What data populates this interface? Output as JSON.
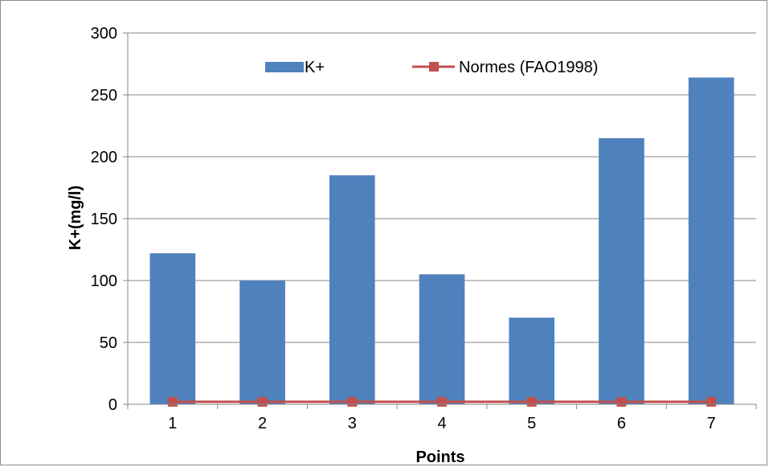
{
  "chart_data": {
    "type": "bar",
    "title": "",
    "xlabel": "Points",
    "ylabel": "K+(mg/l)",
    "categories": [
      "1",
      "2",
      "3",
      "4",
      "5",
      "6",
      "7"
    ],
    "ylim": [
      0,
      300
    ],
    "yticks": [
      0,
      50,
      100,
      150,
      200,
      250,
      300
    ],
    "grid": true,
    "legend_position": "top",
    "series": [
      {
        "name": "K+",
        "type": "bar",
        "color": "#4F81BD",
        "values": [
          122,
          100,
          185,
          105,
          70,
          215,
          264
        ]
      },
      {
        "name": "Normes (FAO1998)",
        "type": "line",
        "color": "#C0504D",
        "marker": "square",
        "values": [
          2,
          2,
          2,
          2,
          2,
          2,
          2
        ]
      }
    ]
  }
}
